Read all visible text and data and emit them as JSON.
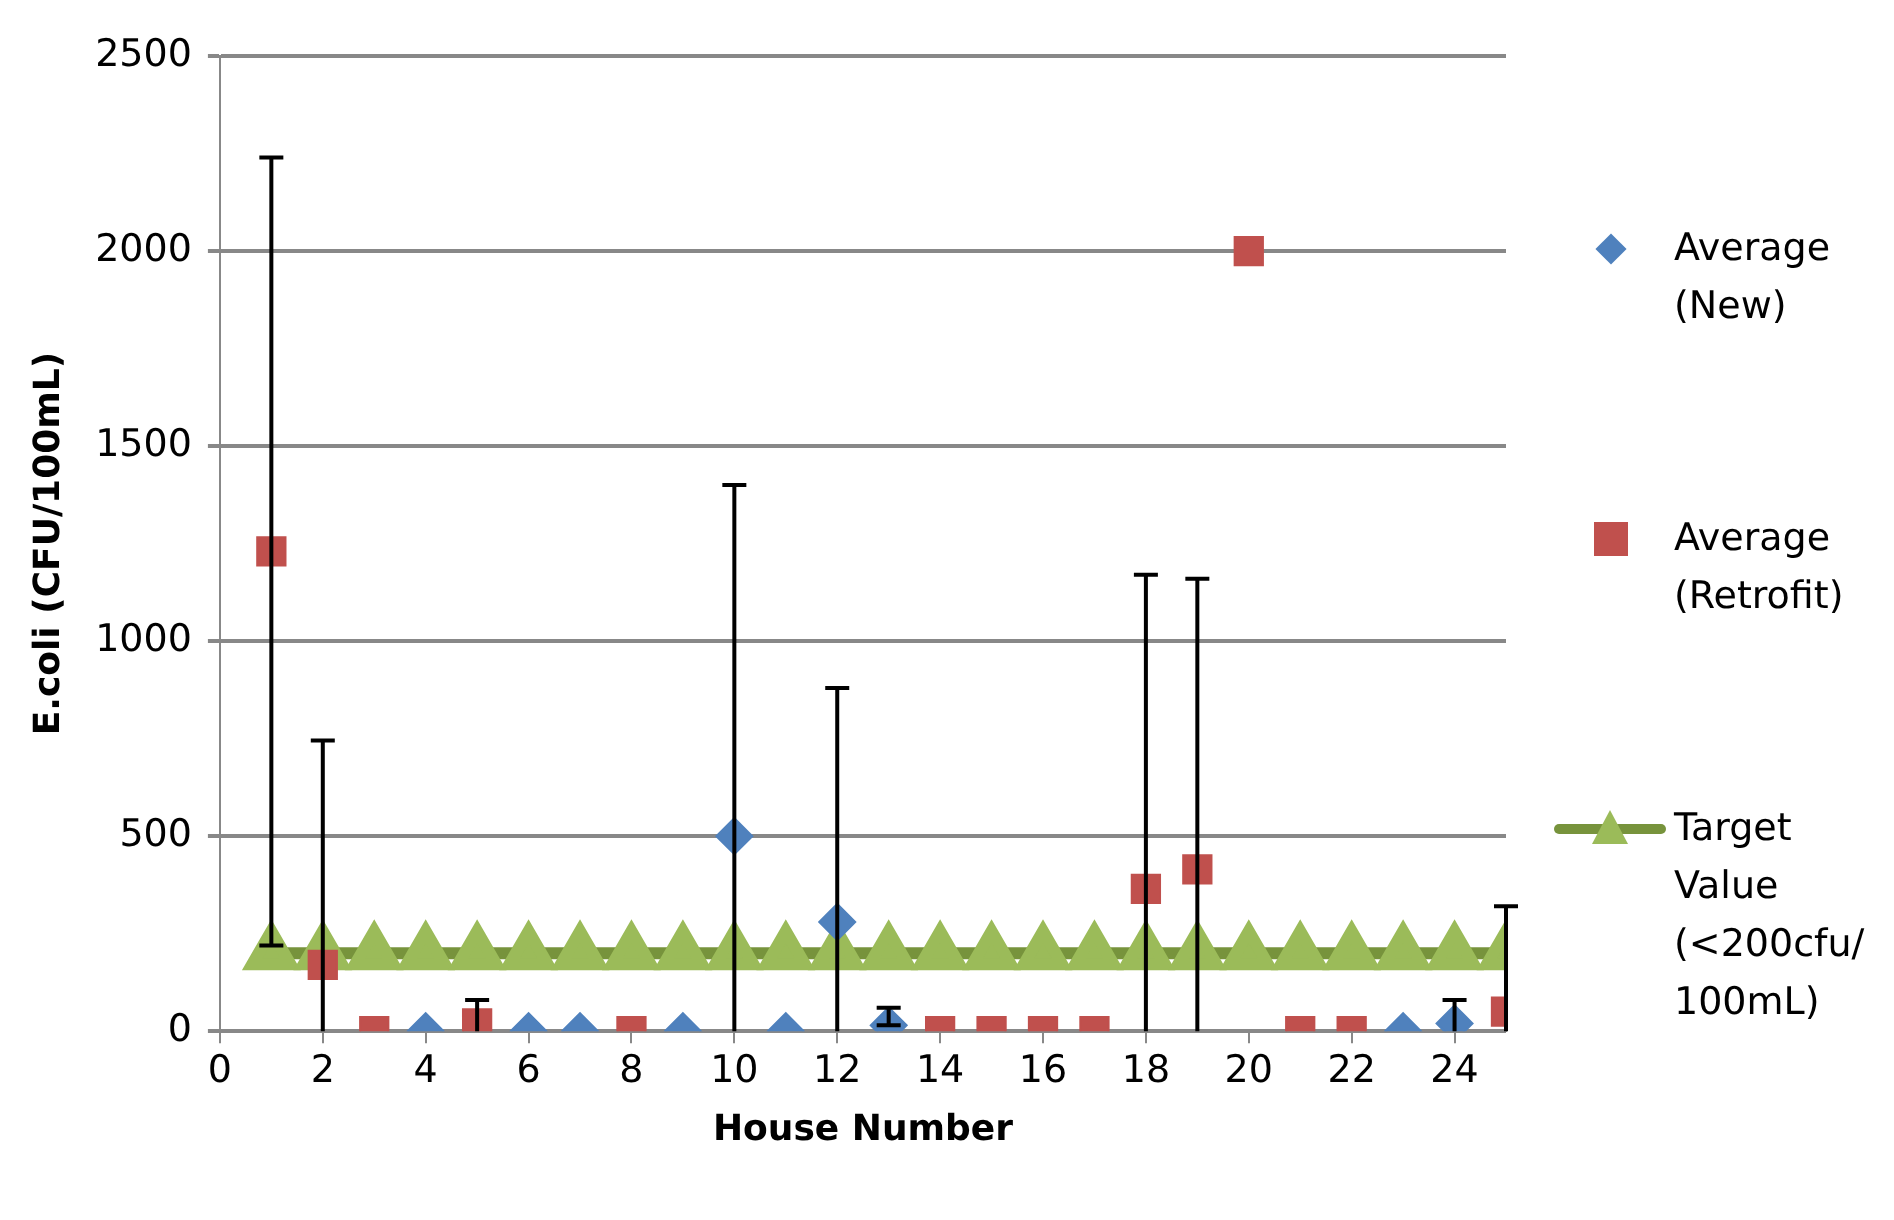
{
  "chart_data": {
    "type": "scatter",
    "xlabel": "House Number",
    "ylabel": "E.coli (CFU/100mL)",
    "xlim": [
      0,
      25
    ],
    "xticks": [
      0,
      2,
      4,
      6,
      8,
      10,
      12,
      14,
      16,
      18,
      20,
      22,
      24
    ],
    "ylim": [
      0,
      2500
    ],
    "yticks": [
      0,
      500,
      1000,
      1500,
      2000,
      2500
    ],
    "grid": "y",
    "legend": "right",
    "series": [
      {
        "name": "Average (New)",
        "type": "scatter",
        "marker": "diamond",
        "color": "#4f81bd",
        "x": [
          4,
          6,
          7,
          9,
          10,
          11,
          12,
          13,
          23,
          24
        ],
        "values": [
          0,
          0,
          0,
          0,
          500,
          0,
          280,
          15,
          0,
          20
        ],
        "errors": [
          null,
          null,
          null,
          null,
          [
            0,
            1400
          ],
          null,
          [
            0,
            880
          ],
          [
            15,
            60
          ],
          null,
          [
            0,
            80
          ]
        ]
      },
      {
        "name": "Average (Retrofit)",
        "type": "scatter",
        "marker": "square",
        "color": "#c0504d",
        "x": [
          1,
          2,
          3,
          5,
          8,
          14,
          15,
          16,
          17,
          18,
          19,
          20,
          21,
          22,
          25
        ],
        "values": [
          1230,
          170,
          0,
          20,
          0,
          0,
          0,
          0,
          0,
          365,
          415,
          2000,
          0,
          0,
          50
        ],
        "errors": [
          [
            220,
            2240
          ],
          [
            0,
            745
          ],
          null,
          [
            0,
            80
          ],
          null,
          null,
          null,
          null,
          null,
          [
            0,
            1170
          ],
          [
            0,
            1160
          ],
          null,
          null,
          null,
          [
            0,
            320
          ]
        ]
      },
      {
        "name": "Target Value (<200cfu/ 100mL)",
        "type": "line",
        "marker": "triangle",
        "color": "#77933c",
        "x": [
          1,
          2,
          3,
          4,
          5,
          6,
          7,
          8,
          9,
          10,
          11,
          12,
          13,
          14,
          15,
          16,
          17,
          18,
          19,
          20,
          21,
          22,
          23,
          24,
          25
        ],
        "values": [
          200,
          200,
          200,
          200,
          200,
          200,
          200,
          200,
          200,
          200,
          200,
          200,
          200,
          200,
          200,
          200,
          200,
          200,
          200,
          200,
          200,
          200,
          200,
          200,
          200
        ]
      }
    ]
  }
}
